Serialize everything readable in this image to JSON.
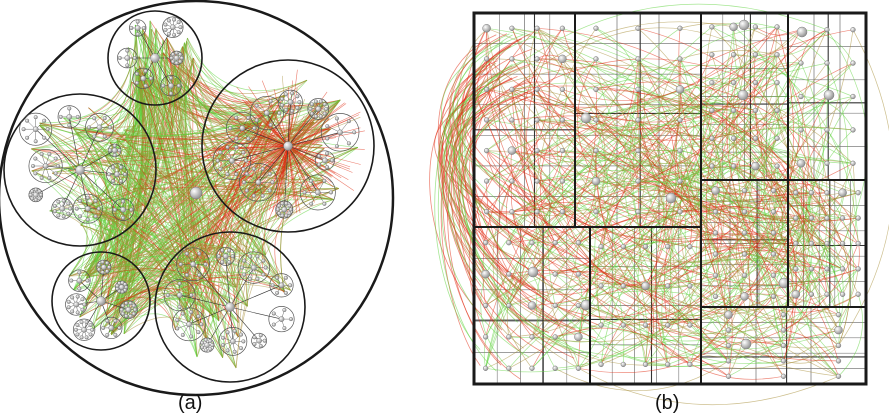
{
  "figure": {
    "panel_a": {
      "caption": "(a)"
    },
    "panel_b": {
      "caption": "(b)"
    }
  },
  "colors": {
    "edge_green": "#5cd23a",
    "edge_red": "#e02a10",
    "edge_olive": "#a48a32",
    "node_fill": "#d8d8d8",
    "node_stroke": "#7a7a7a",
    "border": "#1a1a1a"
  }
}
